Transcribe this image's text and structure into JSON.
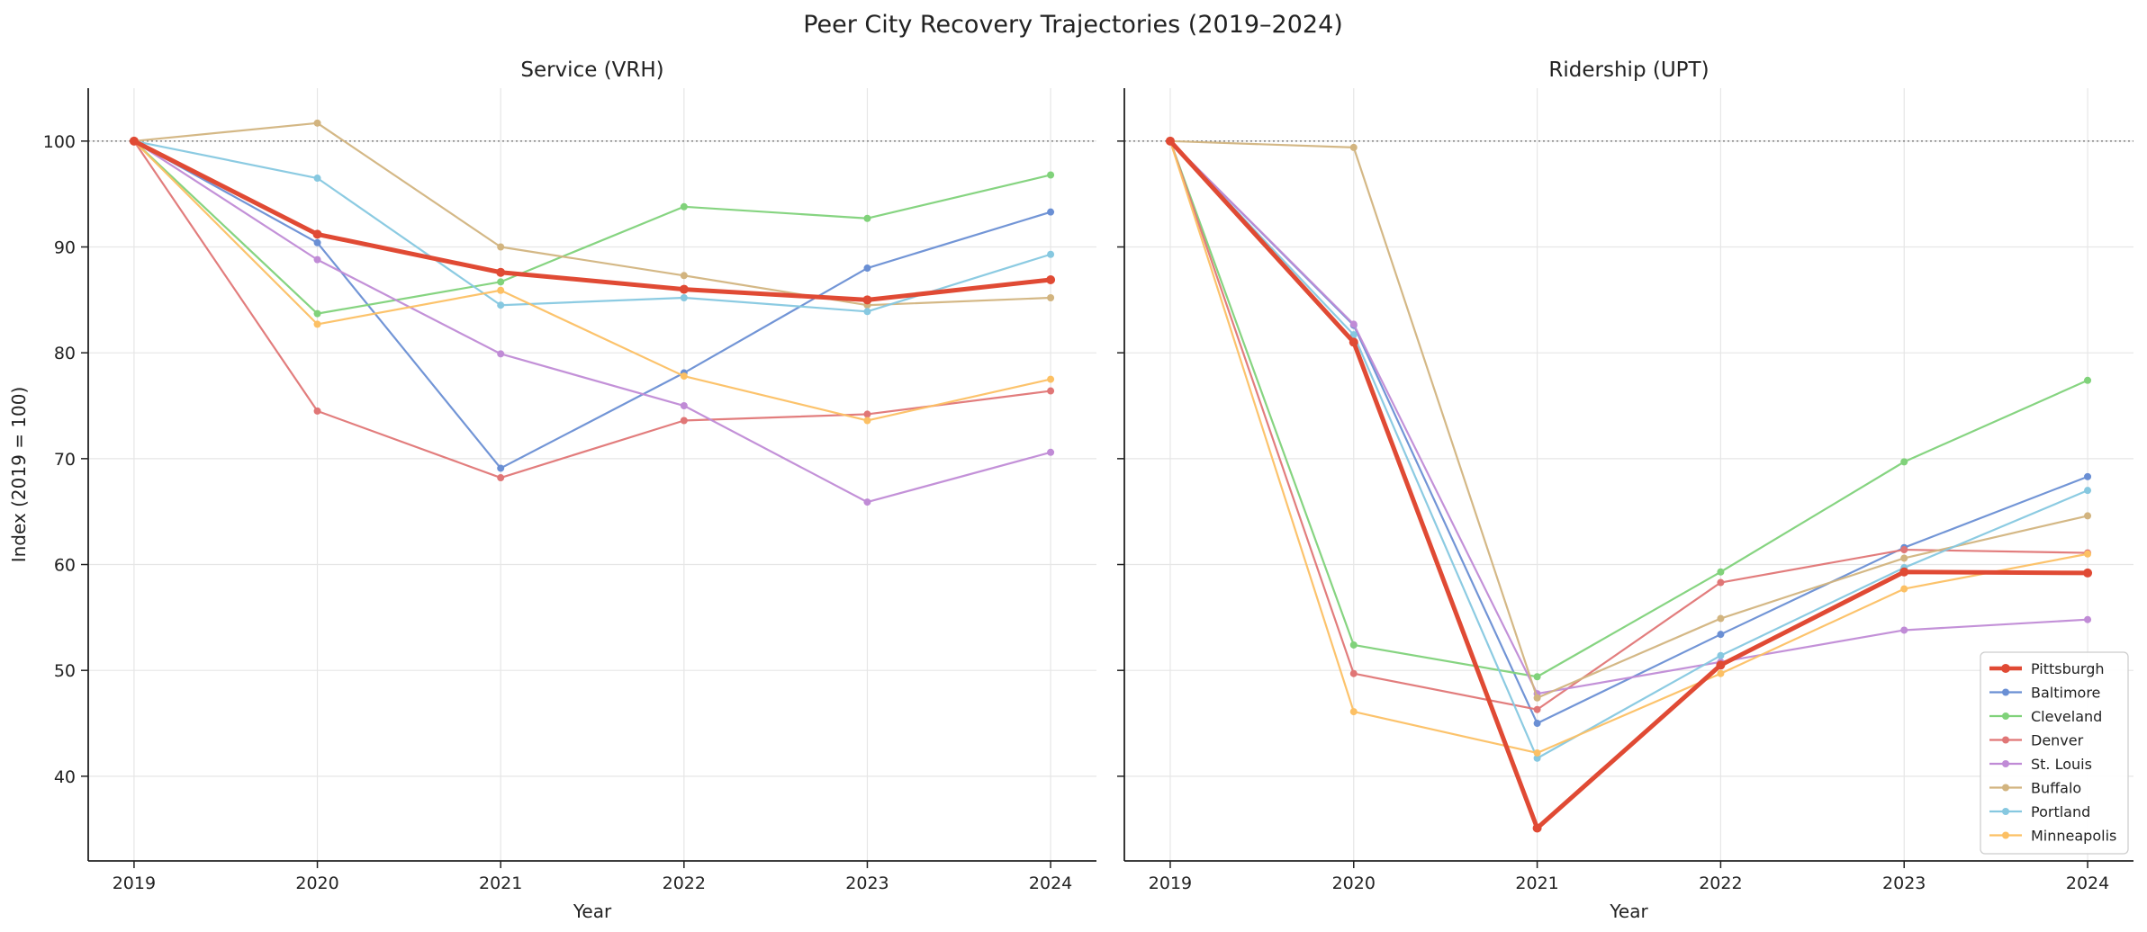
{
  "figure": {
    "title": "Peer City Recovery Trajectories (2019–2024)"
  },
  "chart_data": [
    {
      "type": "line",
      "title": "Service (VRH)",
      "xlabel": "Year",
      "ylabel": "Index (2019 = 100)",
      "x": [
        2019,
        2020,
        2021,
        2022,
        2023,
        2024
      ],
      "ylim": [
        32,
        105
      ],
      "yticks": [
        40,
        50,
        60,
        70,
        80,
        90,
        100
      ],
      "reference_line": 100,
      "grid": true,
      "series": [
        {
          "name": "Pittsburgh",
          "color": "#e04a34",
          "highlight": true,
          "values": [
            100,
            91.2,
            87.6,
            86.0,
            85.0,
            86.9
          ]
        },
        {
          "name": "Baltimore",
          "color": "#6a8fd4",
          "values": [
            100,
            90.4,
            69.1,
            78.1,
            88.0,
            93.3
          ]
        },
        {
          "name": "Cleveland",
          "color": "#80d27a",
          "values": [
            100,
            83.7,
            86.7,
            93.8,
            92.7,
            96.8
          ]
        },
        {
          "name": "Denver",
          "color": "#e07676",
          "values": [
            100,
            74.5,
            68.2,
            73.6,
            74.2,
            76.4
          ]
        },
        {
          "name": "St. Louis",
          "color": "#c08bd6",
          "values": [
            100,
            88.8,
            79.9,
            75.0,
            65.9,
            70.6
          ]
        },
        {
          "name": "Buffalo",
          "color": "#d2b47f",
          "values": [
            100,
            101.7,
            90.0,
            87.3,
            84.5,
            85.2
          ]
        },
        {
          "name": "Portland",
          "color": "#86c8e0",
          "values": [
            100,
            96.5,
            84.5,
            85.2,
            83.9,
            89.3
          ]
        },
        {
          "name": "Minneapolis",
          "color": "#fcc064",
          "values": [
            100,
            82.7,
            85.9,
            77.8,
            73.6,
            77.5
          ]
        }
      ]
    },
    {
      "type": "line",
      "title": "Ridership (UPT)",
      "xlabel": "Year",
      "ylabel": "",
      "x": [
        2019,
        2020,
        2021,
        2022,
        2023,
        2024
      ],
      "ylim": [
        32,
        105
      ],
      "yticks": [
        40,
        50,
        60,
        70,
        80,
        90,
        100
      ],
      "reference_line": 100,
      "grid": true,
      "legend": "lower-right",
      "series": [
        {
          "name": "Pittsburgh",
          "color": "#e04a34",
          "highlight": true,
          "values": [
            100,
            81.0,
            35.1,
            50.5,
            59.3,
            59.2
          ]
        },
        {
          "name": "Baltimore",
          "color": "#6a8fd4",
          "values": [
            100,
            82.6,
            45.0,
            53.4,
            61.6,
            68.3
          ]
        },
        {
          "name": "Cleveland",
          "color": "#80d27a",
          "values": [
            100,
            52.4,
            49.4,
            59.3,
            69.7,
            77.4
          ]
        },
        {
          "name": "Denver",
          "color": "#e07676",
          "values": [
            100,
            49.7,
            46.3,
            58.3,
            61.4,
            61.1
          ]
        },
        {
          "name": "St. Louis",
          "color": "#c08bd6",
          "values": [
            100,
            82.7,
            47.8,
            50.8,
            53.8,
            54.8
          ]
        },
        {
          "name": "Buffalo",
          "color": "#d2b47f",
          "values": [
            100,
            99.4,
            47.4,
            54.9,
            60.6,
            64.6
          ]
        },
        {
          "name": "Portland",
          "color": "#86c8e0",
          "values": [
            100,
            81.7,
            41.7,
            51.4,
            59.7,
            67.0
          ]
        },
        {
          "name": "Minneapolis",
          "color": "#fcc064",
          "values": [
            100,
            46.1,
            42.2,
            49.7,
            57.7,
            61.0
          ]
        }
      ]
    }
  ]
}
